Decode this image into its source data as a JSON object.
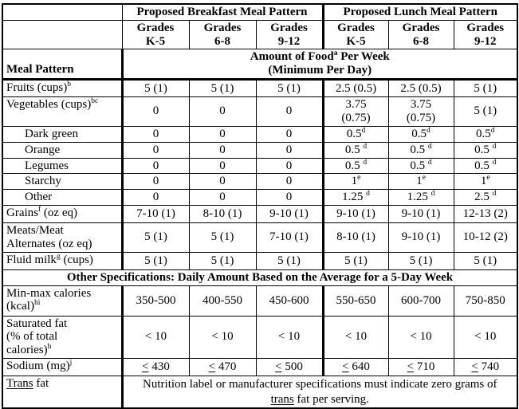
{
  "table": {
    "breakfast_header": "Proposed Breakfast Meal Pattern",
    "lunch_header": "Proposed Lunch Meal Pattern",
    "grade_headers": [
      "Grades{br}K-5",
      "Grades{br}6-8",
      "Grades{br}9-12",
      "Grades{br}K-5",
      "Grades{br}6-8",
      "Grades{br}9-12"
    ],
    "meal_pattern_label": "Meal Pattern",
    "amount_header": "Amount of Food{^a} Per Week{br}(Minimum Per Day)",
    "food_rows": [
      {
        "label": "Fruits (cups){^b}",
        "indent": false,
        "values": [
          "5 (1)",
          "5 (1)",
          "5 (1)",
          "2.5 (0.5)",
          "2.5 (0.5)",
          "5 (1)"
        ]
      },
      {
        "label": "Vegetables (cups){^bc}",
        "indent": false,
        "values": [
          "0",
          "0",
          "0",
          "3.75{br}(0.75)",
          "3.75{br}(0.75)",
          "5 (1)"
        ]
      },
      {
        "label": "Dark green",
        "indent": true,
        "values": [
          "0",
          "0",
          "0",
          "0.5{^d}",
          "0.5{^d}",
          "0.5{^d}"
        ]
      },
      {
        "label": "Orange",
        "indent": true,
        "values": [
          "0",
          "0",
          "0",
          "0.5 {^d}",
          "0.5 {^d}",
          "0.5 {^d}"
        ]
      },
      {
        "label": "Legumes",
        "indent": true,
        "values": [
          "0",
          "0",
          "0",
          "0.5 {^d}",
          "0.5 {^d}",
          "0.5 {^d}"
        ]
      },
      {
        "label": "Starchy",
        "indent": true,
        "values": [
          "0",
          "0",
          "0",
          "1{^e}",
          "1{^e}",
          "1{^e}"
        ]
      },
      {
        "label": "Other",
        "indent": true,
        "values": [
          "0",
          "0",
          "0",
          "1.25 {^d}",
          "1.25 {^d}",
          "2.5 {^d}"
        ]
      },
      {
        "label": "Grains{^f} (oz eq)",
        "indent": false,
        "values": [
          "7-10 (1)",
          "8-10 (1)",
          "9-10 (1)",
          "9-10 (1)",
          "9-10 (1)",
          "12-13 (2)"
        ]
      },
      {
        "label": "Meats/Meat{br}Alternates (oz eq)",
        "indent": false,
        "values": [
          "5 (1)",
          "5 (1)",
          "7-10 (1)",
          "8-10 (1)",
          "9-10 (1)",
          "10-12 (2)"
        ]
      },
      {
        "label": "Fluid milk{^g} (cups)",
        "indent": false,
        "values": [
          "5 (1)",
          "5 (1)",
          "5 (1)",
          "5 (1)",
          "5 (1)",
          "5 (1)"
        ]
      }
    ],
    "other_specs_header": "Other Specifications: Daily Amount Based on the Average for a 5-Day Week",
    "spec_rows": [
      {
        "label": "Min-max calories{br}(kcal){^hi}",
        "indent": false,
        "values": [
          "350-500",
          "400-550",
          "450-600",
          "550-650",
          "600-700",
          "750-850"
        ]
      },
      {
        "label": "Saturated fat{br}(% of total{br}calories){^h}",
        "indent": false,
        "values": [
          "< 10",
          "< 10",
          "< 10",
          "< 10",
          "< 10",
          "< 10"
        ]
      },
      {
        "label": "Sodium (mg){^j}",
        "indent": false,
        "values": [
          "{_<_} 430",
          "{_<_} 470",
          "{_<_} 500",
          "{_<_} 640",
          "{_<_} 710",
          "{_<_} 740"
        ]
      }
    ],
    "trans_fat_label": "{_Trans_} fat",
    "trans_fat_note": "Nutrition label or manufacturer specifications must indicate zero grams of{br}{_trans_} fat per serving."
  }
}
